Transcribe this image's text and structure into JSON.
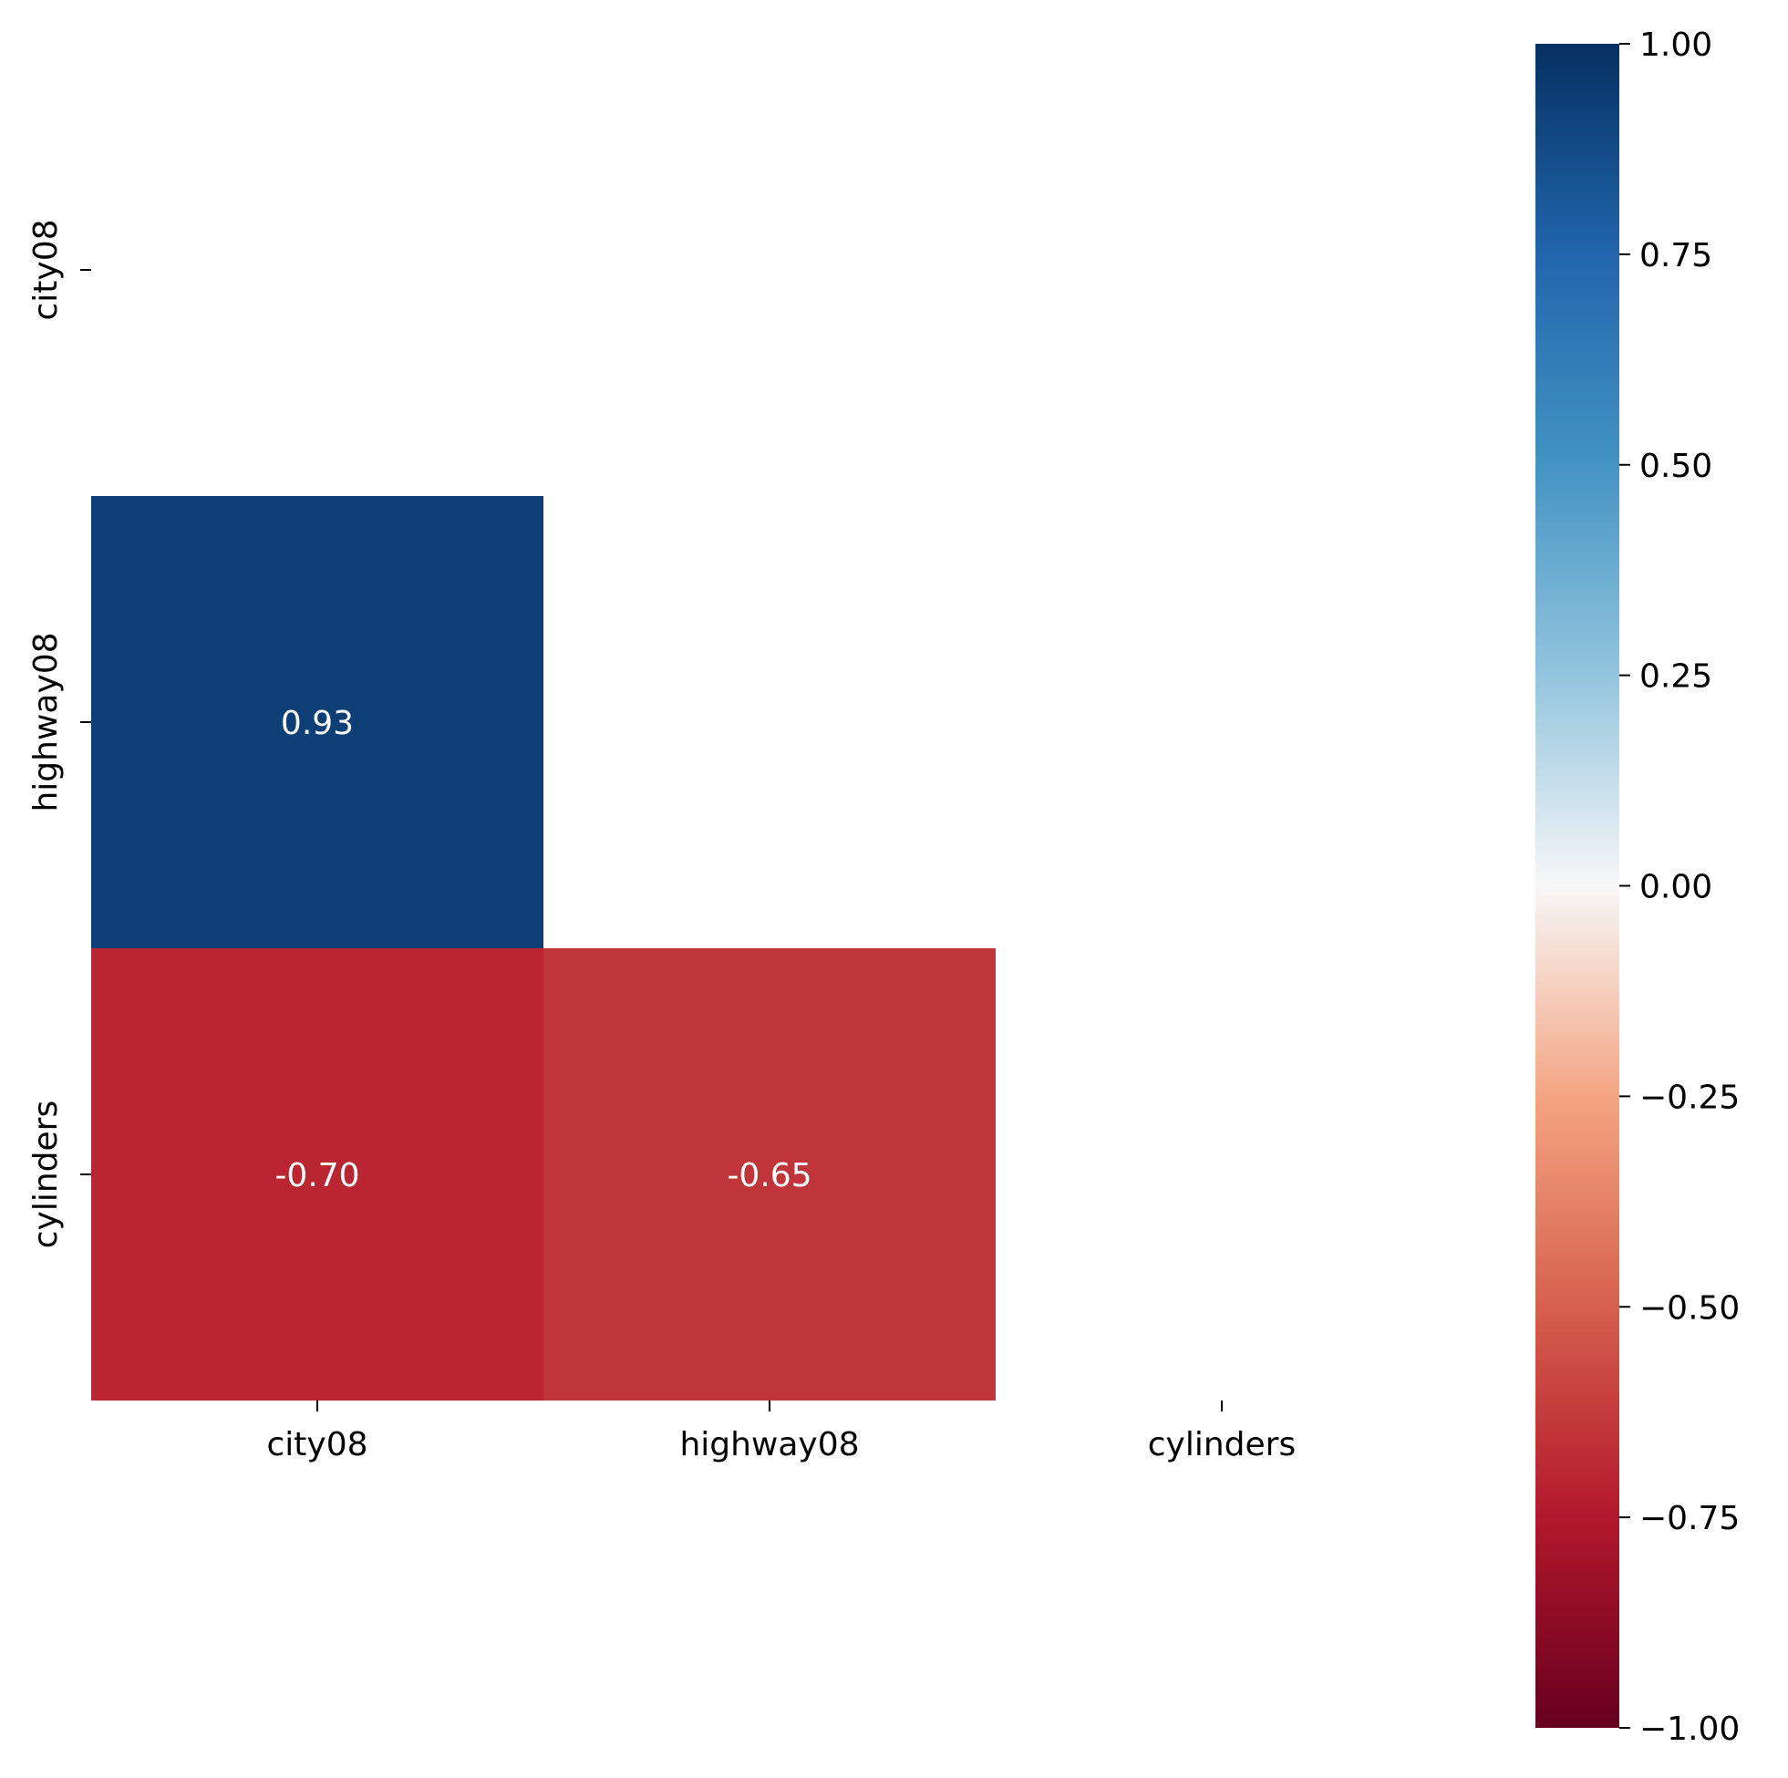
{
  "chart_data": {
    "type": "heatmap",
    "variables": [
      "city08",
      "highway08",
      "cylinders"
    ],
    "x_tick_labels": [
      "city08",
      "highway08",
      "cylinders"
    ],
    "y_tick_labels": [
      "city08",
      "highway08",
      "cylinders"
    ],
    "mask": "upper-triangle-including-diagonal",
    "cells": [
      {
        "row": "highway08",
        "col": "city08",
        "value": 0.93,
        "label": "0.93"
      },
      {
        "row": "cylinders",
        "col": "city08",
        "value": -0.7,
        "label": "-0.70"
      },
      {
        "row": "cylinders",
        "col": "highway08",
        "value": -0.65,
        "label": "-0.65"
      }
    ],
    "colormap": "RdBu",
    "vmin": -1.0,
    "vmax": 1.0,
    "colorbar": {
      "ticks": [
        1.0,
        0.75,
        0.5,
        0.25,
        0.0,
        -0.25,
        -0.5,
        -0.75,
        -1.0
      ],
      "tick_labels": [
        "1.00",
        "0.75",
        "0.50",
        "0.25",
        "0.00",
        "−0.25",
        "−0.50",
        "−0.75",
        "−1.00"
      ],
      "placement": "right"
    },
    "title": "",
    "xlabel": "",
    "ylabel": "",
    "colors": {
      "strong_positive": "#0f3f79",
      "strong_negative": "#c0383b",
      "negative": "#cb4d45",
      "annotation_text": "#ffffff"
    }
  }
}
